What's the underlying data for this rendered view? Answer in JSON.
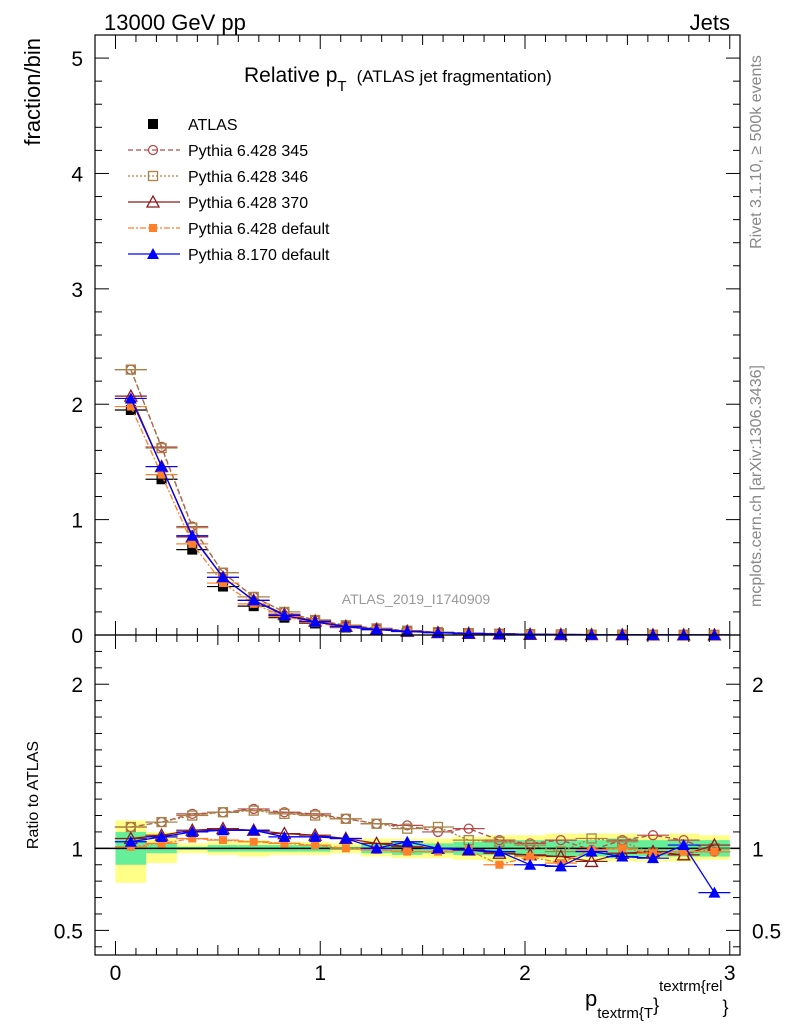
{
  "header": {
    "left": "13000 GeV pp",
    "right": "Jets"
  },
  "side_labels": {
    "rivet": "Rivet 3.1.10, ≥ 500k events",
    "mcplots": "mcplots.cern.ch [arXiv:1306.3436]"
  },
  "chart_data": [
    {
      "panel": "main",
      "type": "line",
      "title_main": "Relative p",
      "title_sub": "T",
      "title_rest": "(ATLAS jet fragmentation)",
      "watermark": "ATLAS_2019_I1740909",
      "ylabel": "fraction/bin",
      "xlabel_main": "p",
      "xlabel_sub": "textrm{T",
      "xlabel_brace": "}",
      "xlabel_sup": "textrm{rel",
      "xlabel_brace2": "}",
      "xlim": [
        -0.1,
        3.05
      ],
      "ylim": [
        0,
        5.2
      ],
      "x_ticks": [
        0,
        1,
        2,
        3
      ],
      "x_tick_labels": [
        "0",
        "1",
        "2",
        "3"
      ],
      "y_ticks": [
        0,
        1,
        2,
        3,
        4,
        5
      ],
      "y_tick_labels": [
        "0",
        "1",
        "2",
        "3",
        "4",
        "5"
      ],
      "x": [
        0.075,
        0.225,
        0.375,
        0.525,
        0.675,
        0.825,
        0.975,
        1.125,
        1.275,
        1.425,
        1.575,
        1.725,
        1.875,
        2.025,
        2.175,
        2.325,
        2.475,
        2.625,
        2.775,
        2.925
      ],
      "series": [
        {
          "name": "ATLAS",
          "color": "#000000",
          "marker": "square-filled",
          "dash": "",
          "values": [
            1.95,
            1.35,
            0.74,
            0.42,
            0.25,
            0.15,
            0.1,
            0.065,
            0.045,
            0.03,
            0.02,
            0.013,
            0.009,
            0.006,
            0.004,
            0.003,
            0.002,
            0.0015,
            0.001,
            0.0008
          ]
        },
        {
          "name": "Pythia 6.428 345",
          "color": "#b84a4a",
          "marker": "circle-open",
          "dash": "5,3",
          "values": [
            2.3,
            1.63,
            0.94,
            0.54,
            0.33,
            0.2,
            0.13,
            0.085,
            0.058,
            0.038,
            0.025,
            0.017,
            0.011,
            0.007,
            0.005,
            0.003,
            0.002,
            0.0015,
            0.001,
            0.0008
          ]
        },
        {
          "name": "Pythia 6.428 346",
          "color": "#a68244",
          "marker": "square-open",
          "dash": "2,2",
          "values": [
            2.3,
            1.62,
            0.93,
            0.54,
            0.33,
            0.2,
            0.13,
            0.084,
            0.057,
            0.037,
            0.025,
            0.016,
            0.011,
            0.007,
            0.005,
            0.003,
            0.002,
            0.0015,
            0.001,
            0.0008
          ]
        },
        {
          "name": "Pythia 6.428 370",
          "color": "#8b1a1a",
          "marker": "triangle-open",
          "dash": "",
          "values": [
            2.07,
            1.46,
            0.85,
            0.5,
            0.3,
            0.18,
            0.12,
            0.075,
            0.05,
            0.033,
            0.021,
            0.014,
            0.009,
            0.006,
            0.004,
            0.003,
            0.002,
            0.0015,
            0.001,
            0.0008
          ]
        },
        {
          "name": "Pythia 6.428 default",
          "color": "#ff7f2a",
          "marker": "square-filled-small",
          "dash": "6,2,2,2",
          "values": [
            1.98,
            1.39,
            0.79,
            0.45,
            0.27,
            0.16,
            0.105,
            0.067,
            0.046,
            0.03,
            0.02,
            0.013,
            0.009,
            0.006,
            0.004,
            0.003,
            0.002,
            0.0015,
            0.001,
            0.0008
          ]
        },
        {
          "name": "Pythia 8.170 default",
          "color": "#0000ff",
          "marker": "triangle-filled",
          "dash": "",
          "values": [
            2.05,
            1.46,
            0.86,
            0.5,
            0.3,
            0.17,
            0.115,
            0.072,
            0.047,
            0.031,
            0.02,
            0.013,
            0.009,
            0.006,
            0.004,
            0.003,
            0.002,
            0.0015,
            0.001,
            0.0008
          ]
        }
      ]
    },
    {
      "panel": "ratio",
      "type": "line",
      "ylabel": "Ratio to ATLAS",
      "xlim": [
        -0.1,
        3.05
      ],
      "ylim": [
        0.35,
        2.3
      ],
      "y_ticks": [
        0.5,
        1,
        2
      ],
      "y_tick_labels": [
        "0.5",
        "1",
        "2"
      ],
      "x": [
        0.075,
        0.225,
        0.375,
        0.525,
        0.675,
        0.825,
        0.975,
        1.125,
        1.275,
        1.425,
        1.575,
        1.725,
        1.875,
        2.025,
        2.175,
        2.325,
        2.475,
        2.625,
        2.775,
        2.925
      ],
      "band_inner_color": "#66ee99",
      "band_outer_color": "#ffff88",
      "band_inner": [
        [
          0.9,
          1.1
        ],
        [
          0.97,
          1.03
        ],
        [
          0.99,
          1.01
        ],
        [
          0.98,
          1.02
        ],
        [
          0.98,
          1.02
        ],
        [
          0.98,
          1.02
        ],
        [
          0.98,
          1.02
        ],
        [
          0.99,
          1.01
        ],
        [
          0.97,
          1.03
        ],
        [
          0.96,
          1.04
        ],
        [
          0.97,
          1.03
        ],
        [
          0.96,
          1.04
        ],
        [
          0.96,
          1.04
        ],
        [
          0.95,
          1.05
        ],
        [
          0.95,
          1.05
        ],
        [
          0.95,
          1.05
        ],
        [
          0.94,
          1.06
        ],
        [
          0.95,
          1.05
        ],
        [
          0.95,
          1.05
        ],
        [
          0.95,
          1.05
        ]
      ],
      "band_outer": [
        [
          0.79,
          1.17
        ],
        [
          0.91,
          1.1
        ],
        [
          0.97,
          1.03
        ],
        [
          0.96,
          1.04
        ],
        [
          0.95,
          1.05
        ],
        [
          0.96,
          1.04
        ],
        [
          0.96,
          1.04
        ],
        [
          0.97,
          1.03
        ],
        [
          0.95,
          1.06
        ],
        [
          0.94,
          1.06
        ],
        [
          0.94,
          1.06
        ],
        [
          0.93,
          1.07
        ],
        [
          0.92,
          1.08
        ],
        [
          0.93,
          1.08
        ],
        [
          0.91,
          1.09
        ],
        [
          0.92,
          1.09
        ],
        [
          0.92,
          1.09
        ],
        [
          0.92,
          1.08
        ],
        [
          0.92,
          1.09
        ],
        [
          0.93,
          1.08
        ]
      ],
      "series": [
        {
          "name": "Pythia 6.428 345",
          "color": "#b84a4a",
          "marker": "circle-open",
          "dash": "5,3",
          "values": [
            1.13,
            1.16,
            1.21,
            1.22,
            1.24,
            1.22,
            1.21,
            1.18,
            1.15,
            1.14,
            1.1,
            1.12,
            1.05,
            1.03,
            1.05,
            0.99,
            1.05,
            1.08,
            1.05,
            0.98
          ]
        },
        {
          "name": "Pythia 6.428 346",
          "color": "#a68244",
          "marker": "square-open",
          "dash": "2,2",
          "values": [
            1.13,
            1.16,
            1.2,
            1.22,
            1.23,
            1.21,
            1.2,
            1.18,
            1.15,
            1.12,
            1.13,
            1.05,
            1.04,
            1.02,
            0.98,
            1.06,
            1.04,
            0.97,
            0.96,
            1.0
          ]
        },
        {
          "name": "Pythia 6.428 370",
          "color": "#8b1a1a",
          "marker": "triangle-open",
          "dash": "",
          "values": [
            1.06,
            1.08,
            1.11,
            1.12,
            1.11,
            1.09,
            1.08,
            1.06,
            1.03,
            1.01,
            1.0,
            0.99,
            0.97,
            0.96,
            0.95,
            0.92,
            0.97,
            0.98,
            0.96,
            1.02
          ]
        },
        {
          "name": "Pythia 6.428 default",
          "color": "#ff7f2a",
          "marker": "square-filled-small",
          "dash": "6,2,2,2",
          "values": [
            1.01,
            1.03,
            1.06,
            1.05,
            1.04,
            1.03,
            1.02,
            1.0,
            0.99,
            0.98,
            0.98,
            0.99,
            0.9,
            0.95,
            0.91,
            0.99,
            1.0,
            0.97,
            0.98,
            0.98
          ]
        },
        {
          "name": "Pythia 8.170 default",
          "color": "#0000ff",
          "marker": "triangle-filled",
          "dash": "",
          "values": [
            1.04,
            1.07,
            1.1,
            1.11,
            1.11,
            1.07,
            1.07,
            1.06,
            1.0,
            1.04,
            1.0,
            0.99,
            0.98,
            0.9,
            0.89,
            0.98,
            0.95,
            0.94,
            1.02,
            0.73
          ]
        }
      ]
    }
  ]
}
